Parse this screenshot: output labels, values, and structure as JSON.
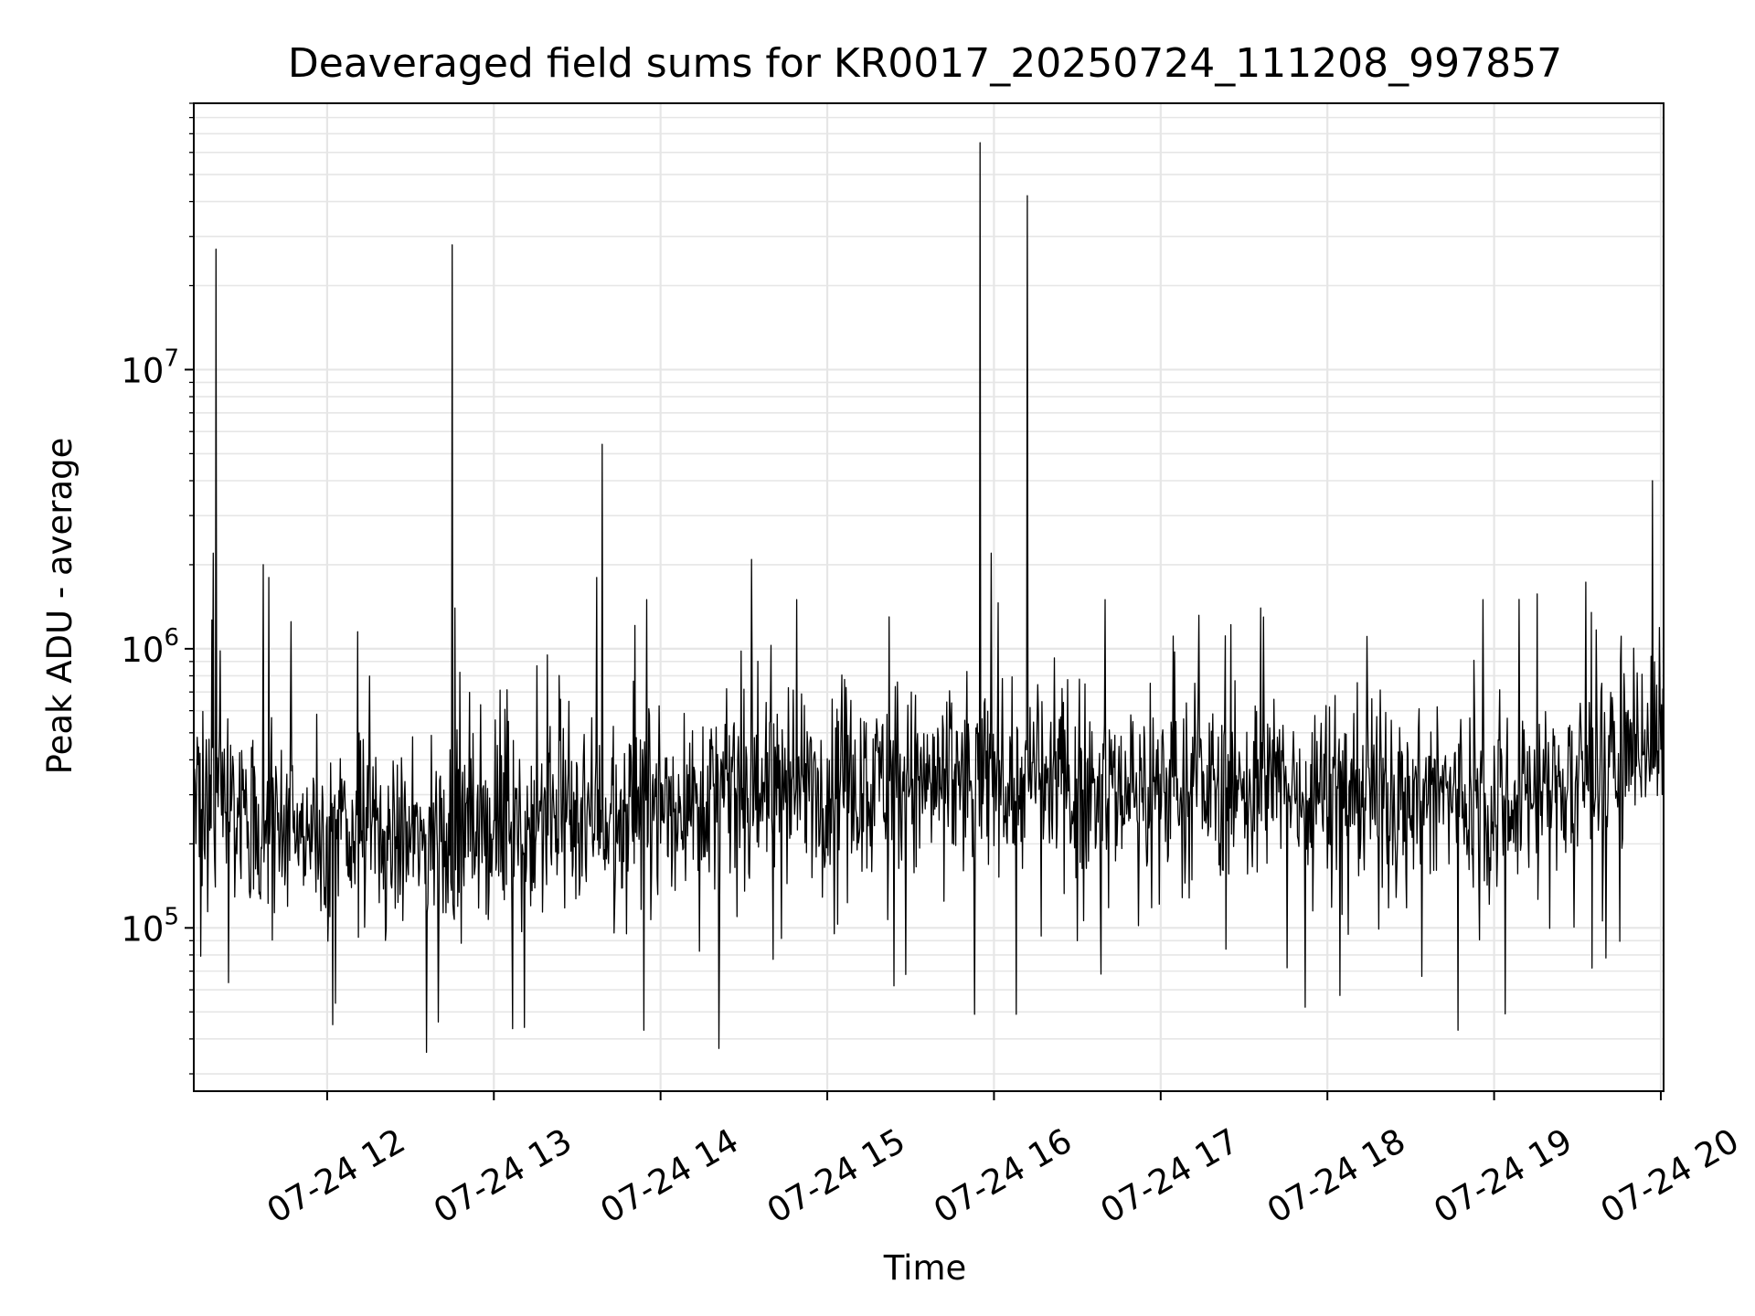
{
  "chart_data": {
    "type": "line",
    "title": "Deaveraged field sums for KR0017_20250724_111208_997857",
    "xlabel": "Time",
    "ylabel": "Peak ADU - average",
    "x_start": "07-24 11:12",
    "x_range": [
      "07-24 11:12",
      "07-24 20:01"
    ],
    "x_ticks": [
      "07-24 12",
      "07-24 13",
      "07-24 14",
      "07-24 15",
      "07-24 16",
      "07-24 17",
      "07-24 18",
      "07-24 19",
      "07-24 20"
    ],
    "y_scale": "log",
    "ylim": [
      26000,
      90000000
    ],
    "y_ticks": [
      {
        "label_base": "10",
        "label_exp": "5",
        "value": 100000
      },
      {
        "label_base": "10",
        "label_exp": "6",
        "value": 1000000
      },
      {
        "label_base": "10",
        "label_exp": "7",
        "value": 10000000
      }
    ],
    "grid": true,
    "line_color": "#000000",
    "grid_color": "#e6e6e6",
    "baseline": [
      [
        "07-24 11:12",
        300000
      ],
      [
        "07-24 11:45",
        230000
      ],
      [
        "07-24 12:30",
        200000
      ],
      [
        "07-24 13:00",
        230000
      ],
      [
        "07-24 14:00",
        280000
      ],
      [
        "07-24 15:00",
        340000
      ],
      [
        "07-24 16:00",
        330000
      ],
      [
        "07-24 17:00",
        320000
      ],
      [
        "07-24 18:00",
        320000
      ],
      [
        "07-24 19:00",
        290000
      ],
      [
        "07-24 19:30",
        330000
      ],
      [
        "07-24 20:01",
        550000
      ]
    ],
    "spikes": [
      [
        "07-24 11:20",
        27000000
      ],
      [
        "07-24 11:19",
        2200000
      ],
      [
        "07-24 11:37",
        2000000
      ],
      [
        "07-24 11:39",
        1800000
      ],
      [
        "07-24 11:47",
        1250000
      ],
      [
        "07-24 12:11",
        1150000
      ],
      [
        "07-24 12:45",
        28000000
      ],
      [
        "07-24 12:46",
        1400000
      ],
      [
        "07-24 13:39",
        5400000
      ],
      [
        "07-24 13:37",
        1800000
      ],
      [
        "07-24 13:55",
        1500000
      ],
      [
        "07-24 14:49",
        1500000
      ],
      [
        "07-24 15:55",
        65000000
      ],
      [
        "07-24 15:59",
        2200000
      ],
      [
        "07-24 16:12",
        42000000
      ],
      [
        "07-24 16:40",
        1500000
      ],
      [
        "07-24 17:36",
        1400000
      ],
      [
        "07-24 17:37",
        1300000
      ],
      [
        "07-24 18:56",
        1500000
      ],
      [
        "07-24 19:35",
        1350000
      ],
      [
        "07-24 19:57",
        4000000
      ]
    ],
    "dips": [
      [
        "07-24 12:02",
        45000
      ],
      [
        "07-24 12:40",
        46000
      ],
      [
        "07-24 13:11",
        44000
      ],
      [
        "07-24 13:54",
        43000
      ],
      [
        "07-24 14:21",
        37000
      ],
      [
        "07-24 15:24",
        62000
      ],
      [
        "07-24 15:53",
        49000
      ],
      [
        "07-24 16:08",
        49000
      ],
      [
        "07-24 16:30",
        90000
      ],
      [
        "07-24 17:52",
        52000
      ],
      [
        "07-24 18:47",
        43000
      ],
      [
        "07-24 18:34",
        67000
      ]
    ]
  }
}
